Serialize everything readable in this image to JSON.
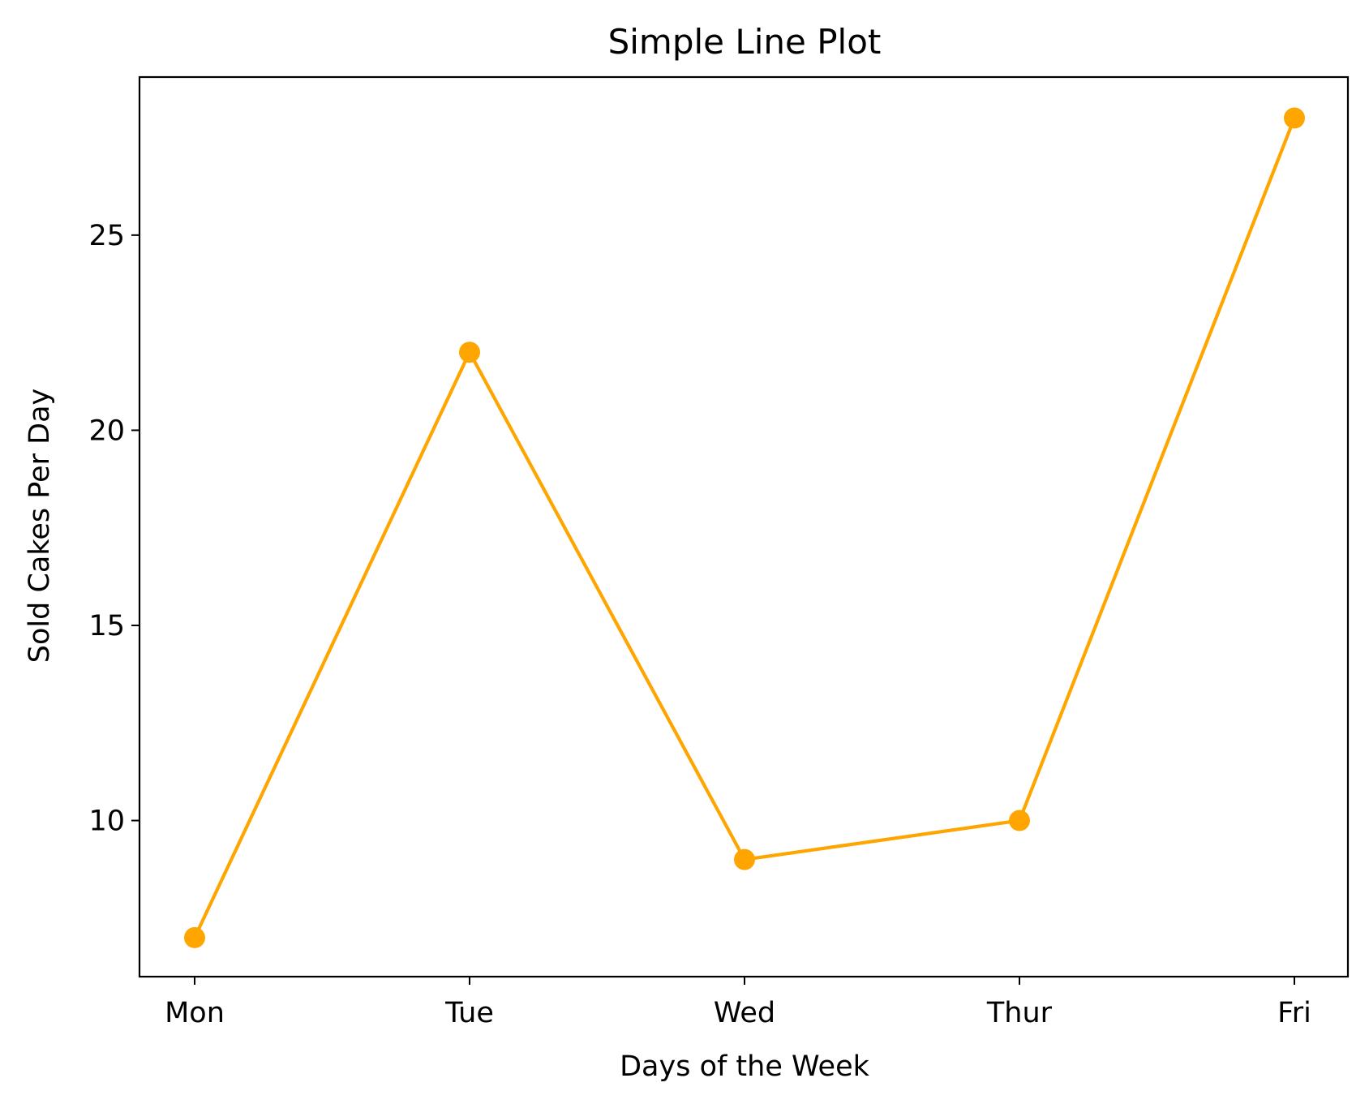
{
  "chart_data": {
    "type": "line",
    "title": "Simple Line Plot",
    "xlabel": "Days of the Week",
    "ylabel": "Sold Cakes Per Day",
    "categories": [
      "Mon",
      "Tue",
      "Wed",
      "Thur",
      "Fri"
    ],
    "series": [
      {
        "values": [
          7,
          22,
          9,
          10,
          28
        ],
        "color": "#FFA500",
        "marker": "circle"
      }
    ],
    "ylim": [
      6,
      29.05
    ],
    "yticks": [
      10,
      15,
      20,
      25
    ],
    "grid": false,
    "legend": "none"
  }
}
